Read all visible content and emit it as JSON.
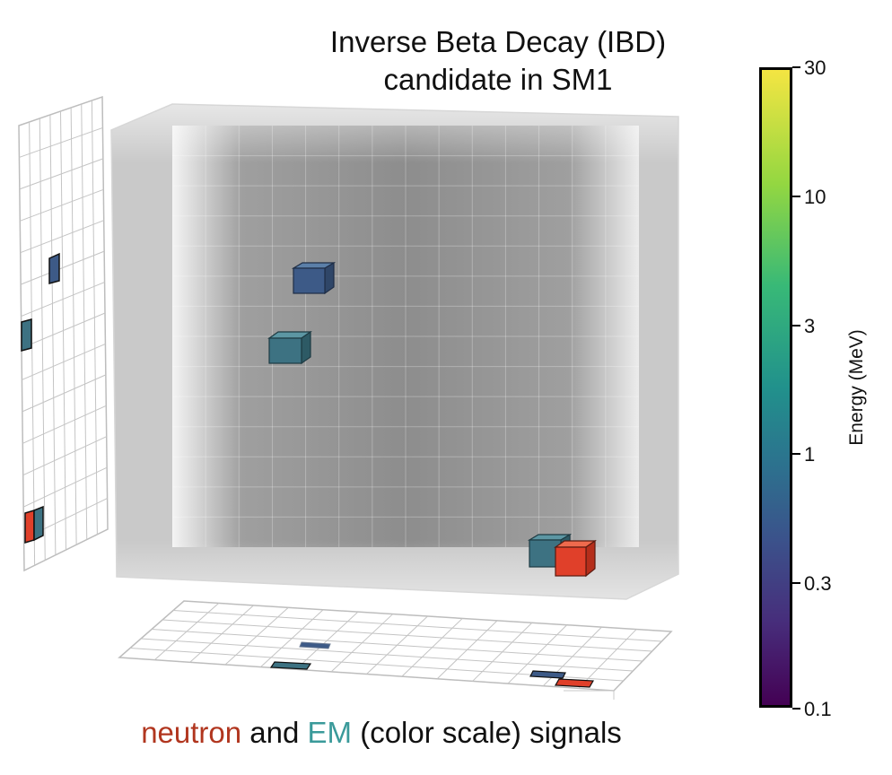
{
  "title_line1": "Inverse Beta Decay (IBD)",
  "title_line2": "candidate in SM1",
  "caption": {
    "neutron": "neutron",
    "and": "and",
    "em": "EM",
    "rest": "(color scale) signals"
  },
  "colorbar": {
    "label": "Energy (MeV)",
    "ticks": [
      "30",
      "10",
      "3",
      "1",
      "0.3",
      "0.1"
    ],
    "scale": "log",
    "range": [
      0.1,
      30
    ],
    "colormap": [
      "#440154",
      "#472d7b",
      "#3b528b",
      "#2c728e",
      "#21918c",
      "#38b977",
      "#93d741",
      "#f4e542"
    ]
  },
  "colors": {
    "neutron": "#e0402a",
    "em_low": "#3d5a87",
    "em_mid": "#3d7282",
    "grid": "#b8b8b8"
  },
  "hits": [
    {
      "type": "EM",
      "energy_mev": 0.6
    },
    {
      "type": "EM",
      "energy_mev": 0.9
    },
    {
      "type": "EM",
      "energy_mev": 0.9
    },
    {
      "type": "neutron"
    }
  ]
}
